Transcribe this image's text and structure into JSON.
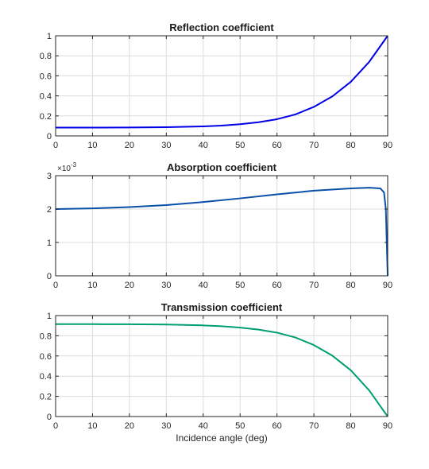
{
  "chart_data": [
    {
      "type": "line",
      "title": "Reflection coefficient",
      "xlabel": "",
      "ylabel": "",
      "xlim": [
        0,
        90
      ],
      "ylim": [
        0,
        1
      ],
      "xticks": [
        "0",
        "10",
        "20",
        "30",
        "40",
        "50",
        "60",
        "70",
        "80",
        "90"
      ],
      "yticks": [
        "0",
        "0.2",
        "0.4",
        "0.6",
        "0.8",
        "1"
      ],
      "grid": true,
      "color": "#0000e6",
      "series": [
        {
          "x": [
            0,
            10,
            20,
            30,
            40,
            45,
            50,
            55,
            60,
            65,
            70,
            75,
            80,
            85,
            90
          ],
          "values": [
            0.083,
            0.083,
            0.084,
            0.087,
            0.095,
            0.103,
            0.117,
            0.137,
            0.167,
            0.215,
            0.29,
            0.395,
            0.54,
            0.74,
            1.0
          ]
        }
      ]
    },
    {
      "type": "line",
      "title": "Absorption coefficient",
      "xlabel": "",
      "ylabel": "",
      "exponent_label": "×10",
      "exponent_power": "-3",
      "xlim": [
        0,
        90
      ],
      "ylim": [
        0,
        3
      ],
      "xticks": [
        "0",
        "10",
        "20",
        "30",
        "40",
        "50",
        "60",
        "70",
        "80",
        "90"
      ],
      "yticks": [
        "0",
        "1",
        "2",
        "3"
      ],
      "grid": true,
      "color": "#0a4fa8",
      "series": [
        {
          "x": [
            0,
            10,
            20,
            30,
            40,
            50,
            60,
            70,
            80,
            85,
            88,
            89,
            89.5,
            90
          ],
          "values": [
            2.0,
            2.02,
            2.06,
            2.12,
            2.21,
            2.32,
            2.44,
            2.55,
            2.62,
            2.64,
            2.62,
            2.5,
            2.0,
            0.0
          ]
        }
      ]
    },
    {
      "type": "line",
      "title": "Transmission coefficient",
      "xlabel": "Incidence angle (deg)",
      "ylabel": "",
      "xlim": [
        0,
        90
      ],
      "ylim": [
        0,
        1
      ],
      "xticks": [
        "0",
        "10",
        "20",
        "30",
        "40",
        "50",
        "60",
        "70",
        "80",
        "90"
      ],
      "yticks": [
        "0",
        "0.2",
        "0.4",
        "0.6",
        "0.8",
        "1"
      ],
      "grid": true,
      "color": "#009e73",
      "series": [
        {
          "x": [
            0,
            10,
            20,
            30,
            40,
            45,
            50,
            55,
            60,
            65,
            70,
            75,
            80,
            85,
            90
          ],
          "values": [
            0.915,
            0.915,
            0.914,
            0.911,
            0.903,
            0.895,
            0.881,
            0.861,
            0.831,
            0.783,
            0.708,
            0.603,
            0.458,
            0.258,
            0.0
          ]
        }
      ]
    }
  ]
}
